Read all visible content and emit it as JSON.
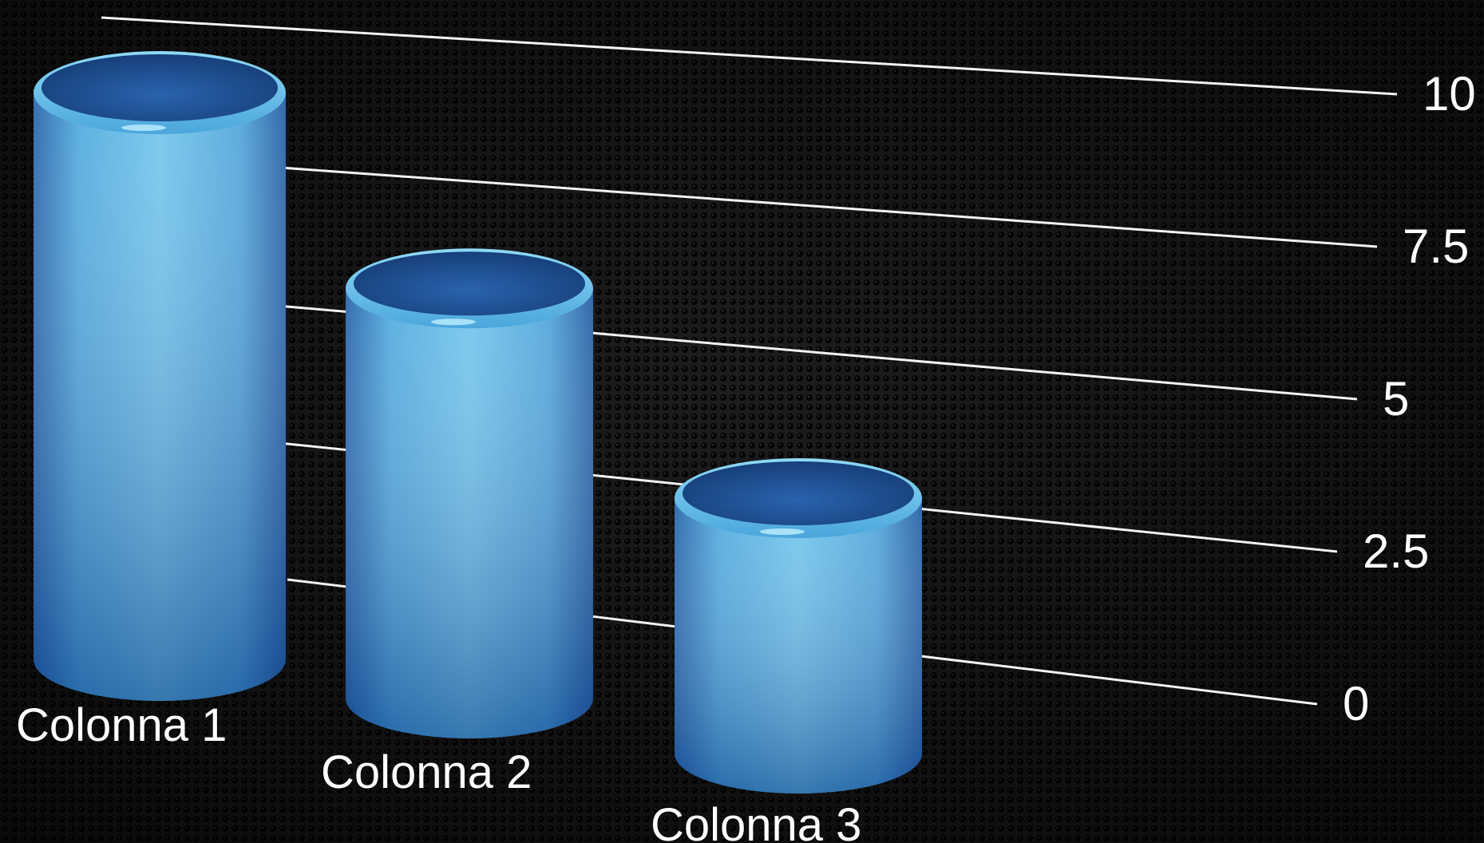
{
  "chart_data": {
    "type": "bar",
    "style": "3d-cylinder",
    "categories": [
      "Colonna 1",
      "Colonna 2",
      "Colonna 3"
    ],
    "values": [
      10,
      7.5,
      5
    ],
    "ylim": [
      0,
      10
    ],
    "yticks": [
      "0",
      "2.5",
      "5",
      "7.5",
      "10"
    ],
    "grid": true,
    "colors": {
      "background": "#141414",
      "bar_light": "#5fb8e4",
      "bar_dark": "#2a72c2",
      "bar_top": "#1f4c8f",
      "grid": "#f2f2f2",
      "text": "#ffffff"
    }
  }
}
